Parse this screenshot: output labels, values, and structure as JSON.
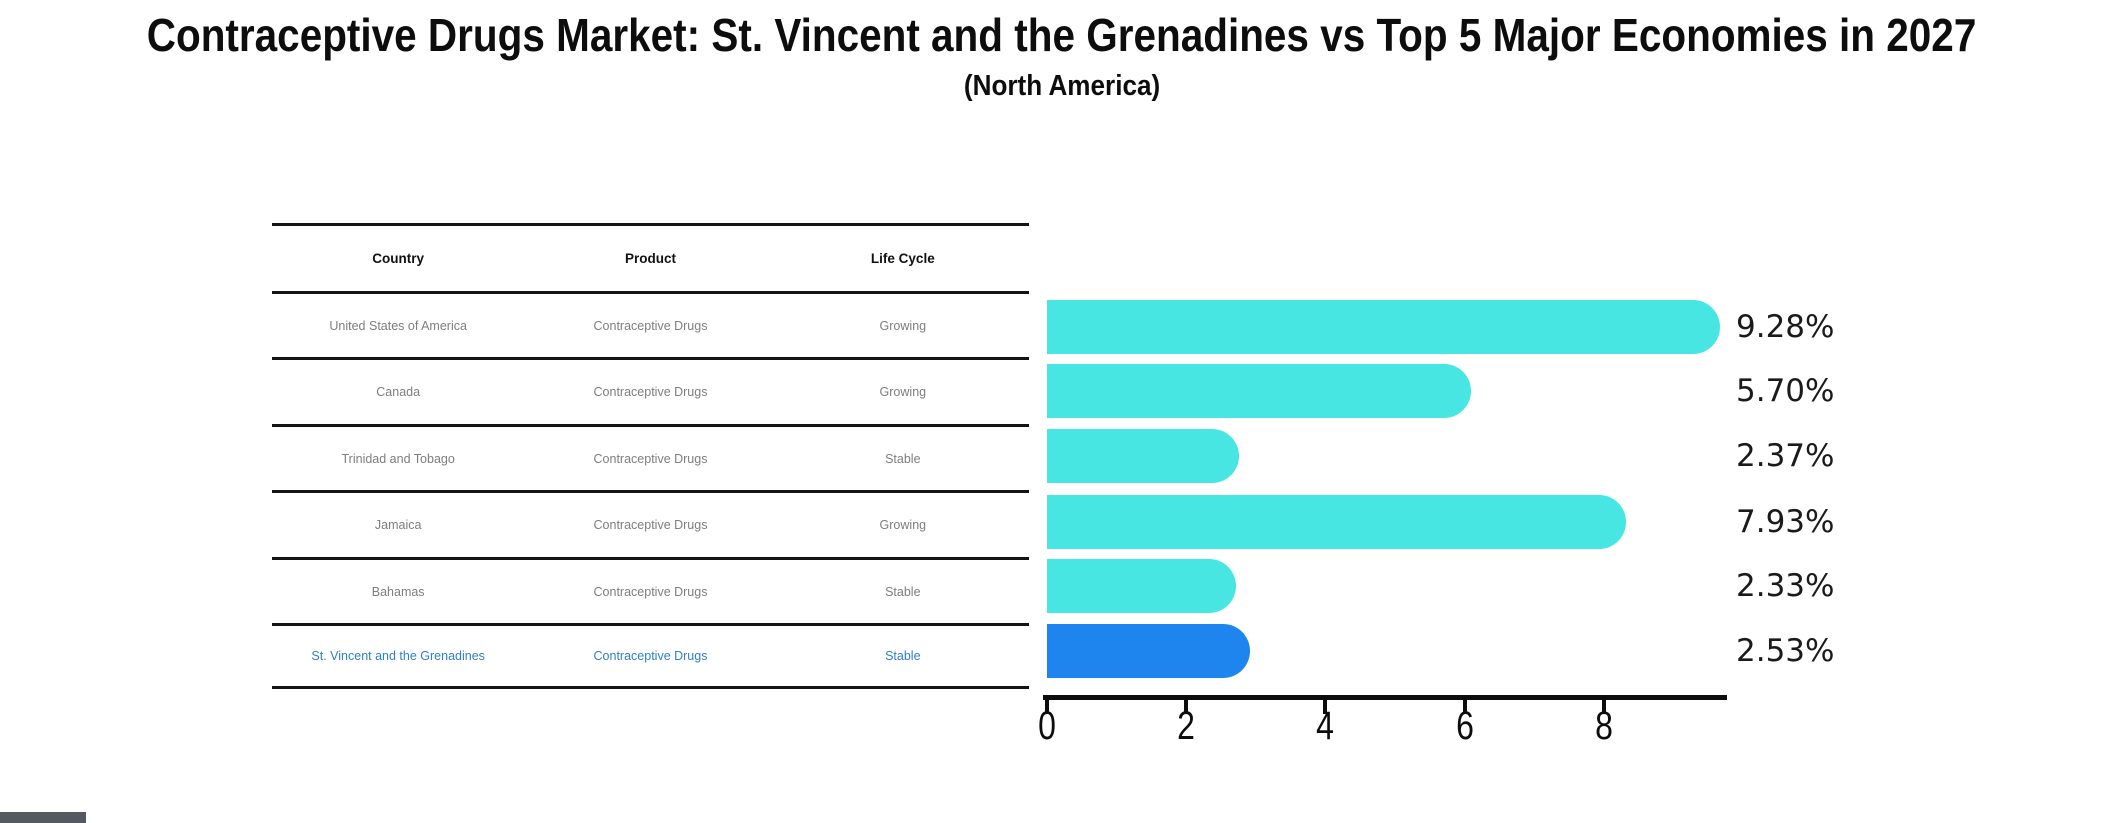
{
  "title": "Contraceptive Drugs Market: St. Vincent and the Grenadines vs Top 5 Major Economies in 2027",
  "subtitle": "(North America)",
  "table": {
    "headers": [
      "Country",
      "Product",
      "Life Cycle"
    ],
    "rows": [
      {
        "country": "United States of America",
        "product": "Contraceptive Drugs",
        "life_cycle": "Growing",
        "highlighted": false
      },
      {
        "country": "Canada",
        "product": "Contraceptive Drugs",
        "life_cycle": "Growing",
        "highlighted": false
      },
      {
        "country": "Trinidad and Tobago",
        "product": "Contraceptive Drugs",
        "life_cycle": "Stable",
        "highlighted": false
      },
      {
        "country": "Jamaica",
        "product": "Contraceptive Drugs",
        "life_cycle": "Growing",
        "highlighted": false
      },
      {
        "country": "Bahamas",
        "product": "Contraceptive Drugs",
        "life_cycle": "Stable",
        "highlighted": false
      },
      {
        "country": "St. Vincent and the Grenadines",
        "product": "Contraceptive Drugs",
        "life_cycle": "Stable",
        "highlighted": true
      }
    ]
  },
  "chart_data": {
    "type": "bar",
    "orientation": "horizontal",
    "title": "Contraceptive Drugs Market: St. Vincent and the Grenadines vs Top 5 Major Economies in 2027",
    "subtitle": "(North America)",
    "categories": [
      "United States of America",
      "Canada",
      "Trinidad and Tobago",
      "Jamaica",
      "Bahamas",
      "St. Vincent and the Grenadines"
    ],
    "values": [
      9.28,
      5.7,
      2.37,
      7.93,
      2.33,
      2.53
    ],
    "value_labels": [
      "9.28%",
      "5.70%",
      "2.37%",
      "7.93%",
      "2.33%",
      "2.53%"
    ],
    "xlabel": "",
    "ylabel": "",
    "xticks": [
      0,
      2,
      4,
      6,
      8
    ],
    "xlim": [
      0,
      9.77
    ],
    "grid": false,
    "legend": false,
    "bar_color": "#47e6e2",
    "highlight_color": "#1e84ee",
    "highlight_index": 5,
    "highlight_edge_style": "dotted"
  },
  "colors": {
    "bar_cyan": "#47e6e2",
    "bar_blue": "#1e84ee",
    "highlight_text_blue": "#2e7fc9",
    "axis_black": "#0d0d0d",
    "table_text_gray": "#7e7e7e"
  }
}
